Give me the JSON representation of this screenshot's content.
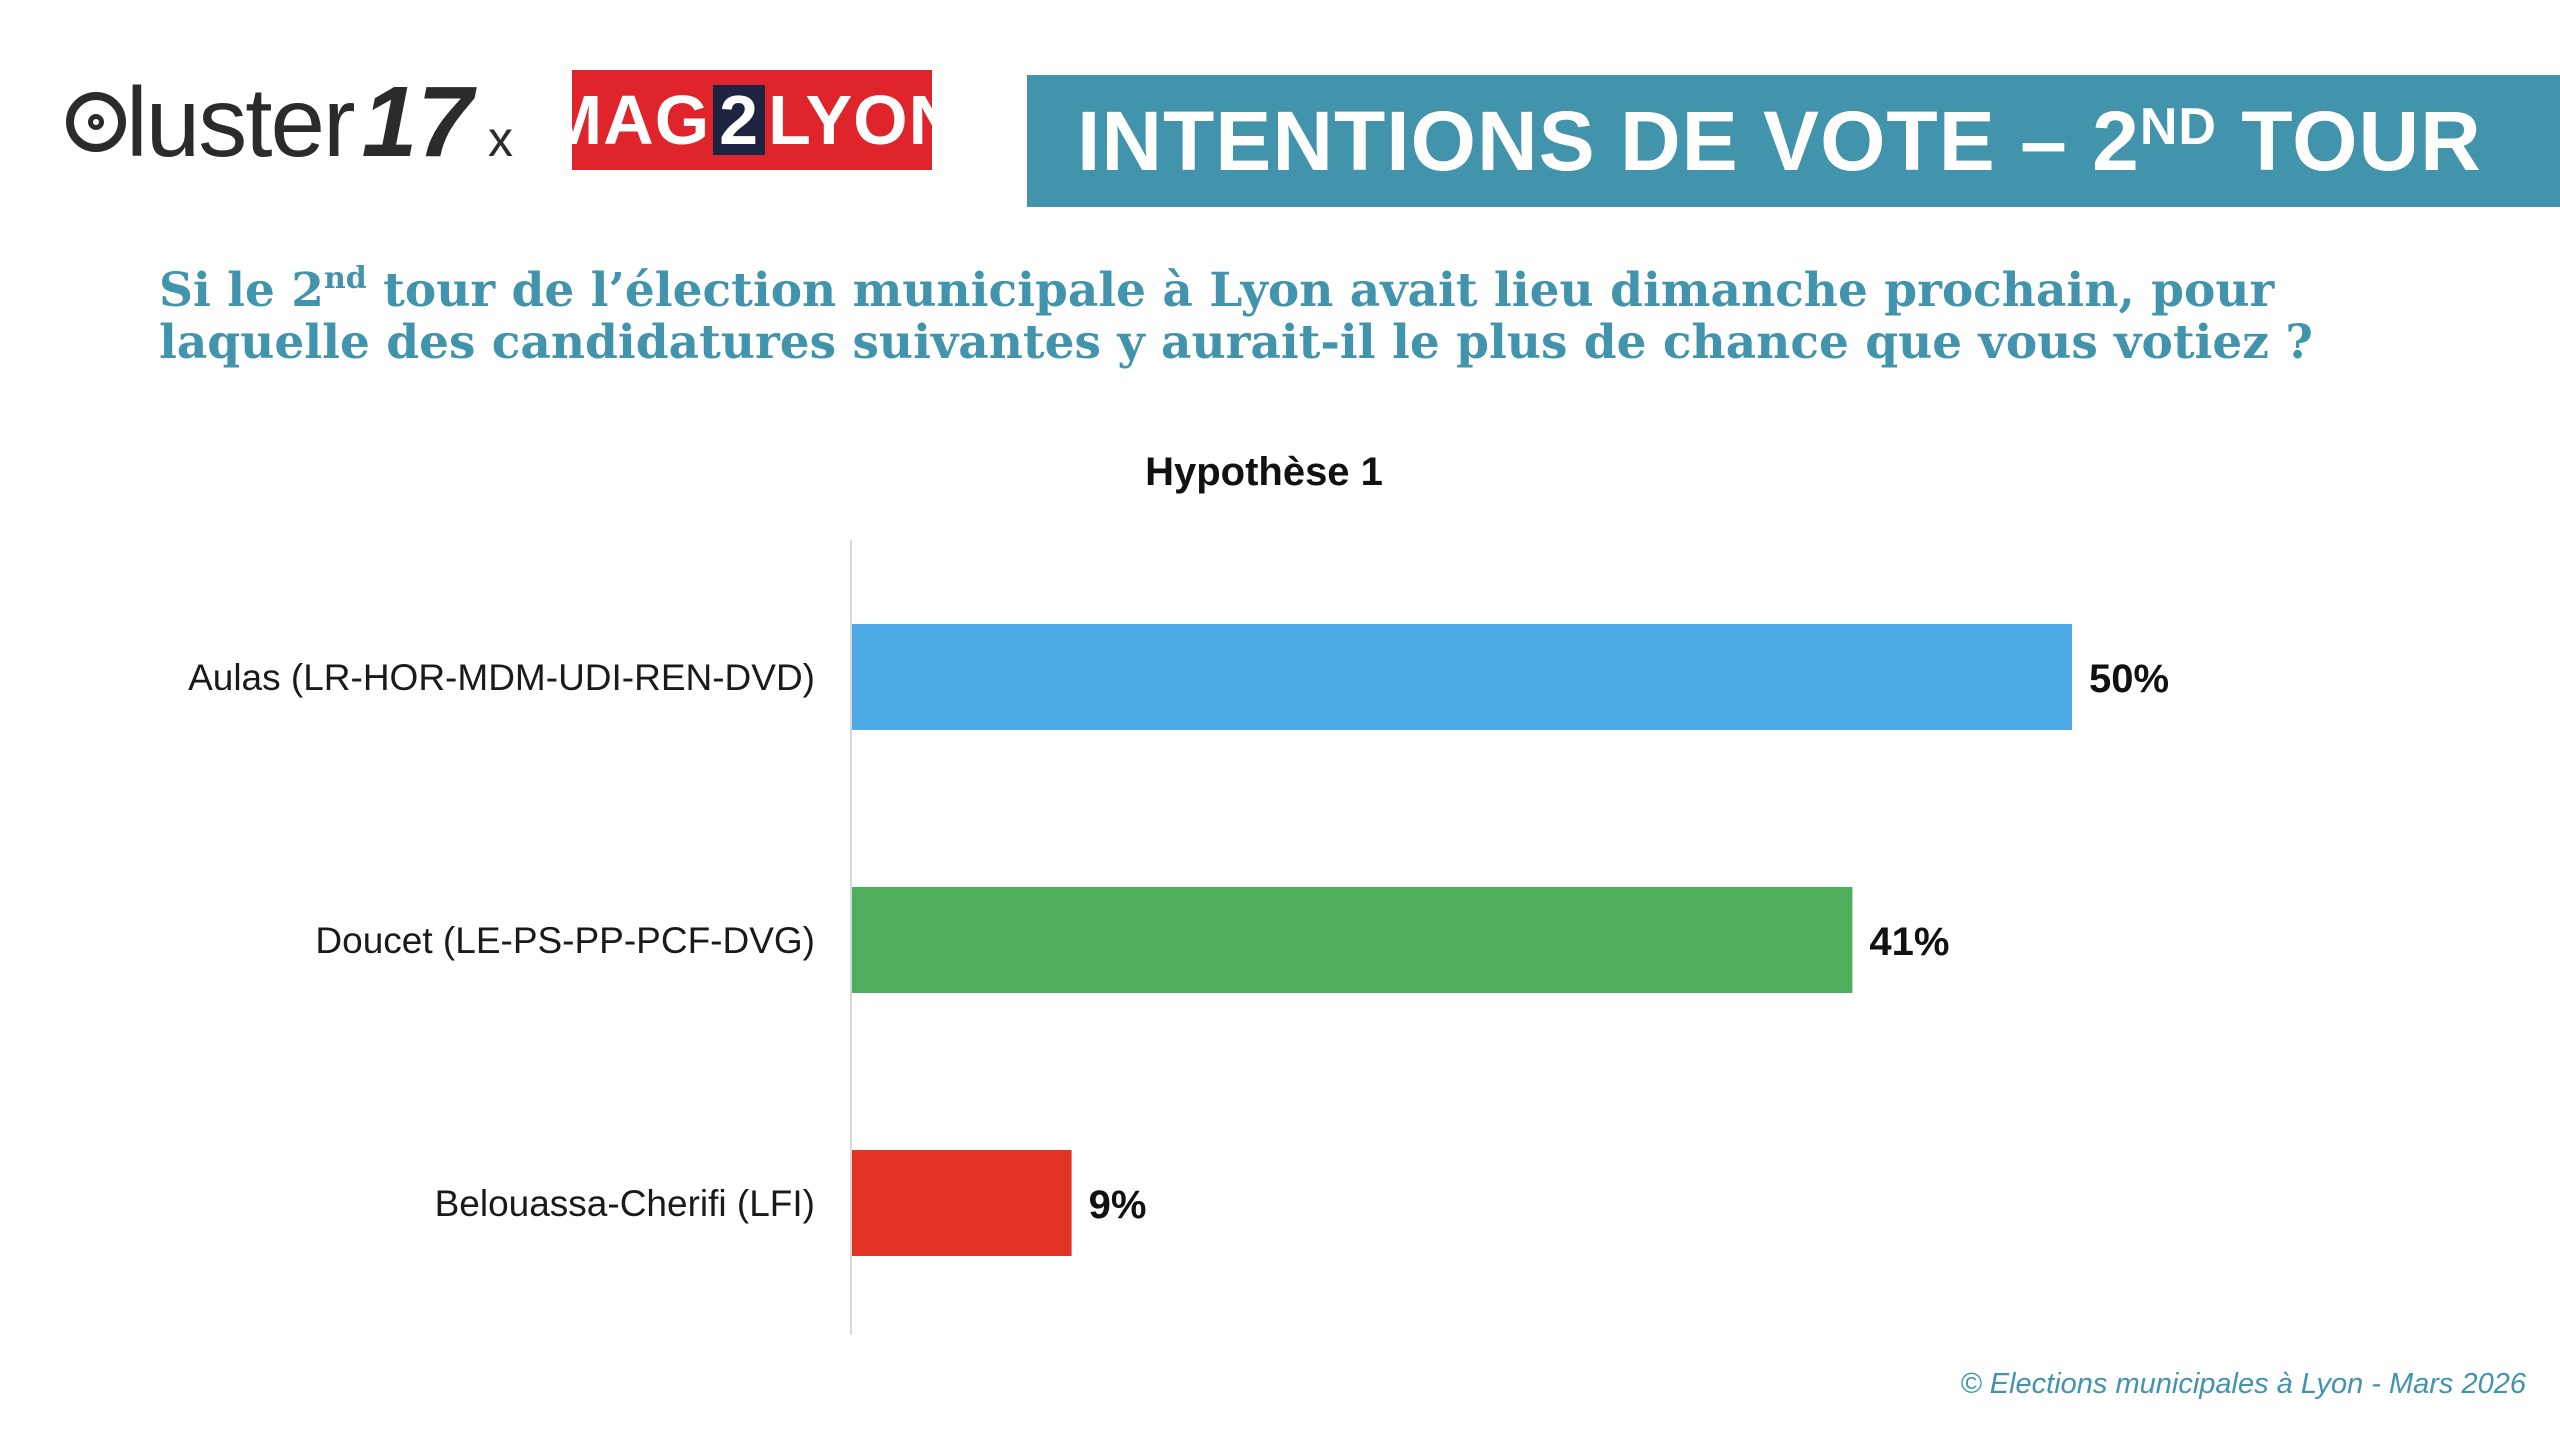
{
  "logos": {
    "cluster_text": "luster",
    "cluster_number": "17",
    "separator": "x",
    "mag_before": "MAG",
    "mag_digit": "2",
    "mag_after": "LYON"
  },
  "banner": {
    "title_before": "INTENTIONS DE VOTE – 2",
    "title_sup": "ND",
    "title_after": " TOUR"
  },
  "question": {
    "part1": "Si le 2",
    "part1_sup": "nd",
    "part2": " tour de l’élection municipale à Lyon avait lieu dimanche prochain, pour laquelle des candidatures suivantes y aurait-il le plus de chance que vous votiez ?"
  },
  "chart_data": {
    "type": "bar",
    "orientation": "horizontal",
    "title": "Hypothèse 1",
    "categories": [
      "Aulas (LR-HOR-MDM-UDI-REN-DVD)",
      "Doucet (LE-PS-PP-PCF-DVG)",
      "Belouassa-Cherifi (LFI)"
    ],
    "values": [
      50,
      41,
      9
    ],
    "value_labels": [
      "50%",
      "41%",
      "9%"
    ],
    "colors": [
      "#4daae6",
      "#4fae5c",
      "#e33325"
    ],
    "xlim": [
      0,
      100
    ],
    "grid": false,
    "legend": "none"
  },
  "footer": {
    "credit": "© Elections municipales à Lyon - Mars 2026"
  }
}
